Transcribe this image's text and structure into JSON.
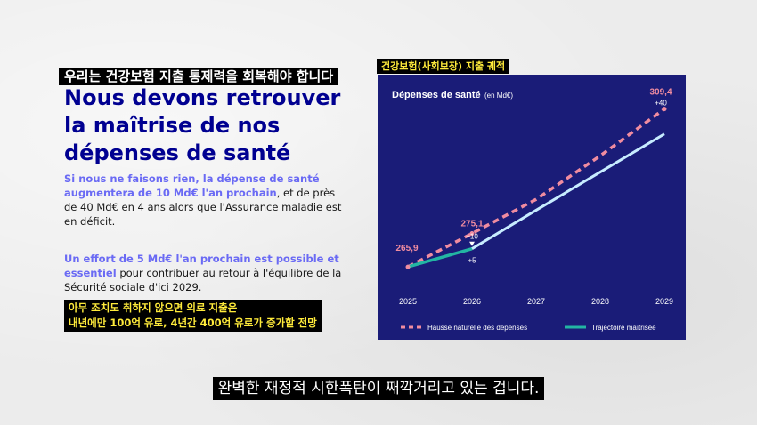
{
  "korean_title": "우리는 건강보험 지출 통제력을 회복해야 합니다",
  "slide": {
    "title": "Nous devons retrouver la maîtrise de nos dépenses de santé",
    "para1": {
      "highlight": "Si nous ne faisons rien, la dépense de santé augmentera de 10 Md€ l'an prochain",
      "rest": ", et de près de 40 Md€ en 4 ans alors que l'Assurance maladie est en déficit."
    },
    "para2": {
      "highlight": "Un effort de 5 Md€ l'an prochain est possible et essentiel",
      "rest": " pour contribuer au retour à l'équilibre de la Sécurité sociale d'ici 2029."
    }
  },
  "korean_sub": {
    "line1": "아무 조치도 취하지 않으면 의료 지출은",
    "line2": "내년에만 100억 유로, 4년간 400억 유로가 증가할 전망"
  },
  "korean_chart_label": "건강보험(사회보장) 지출 궤적",
  "chart_data": {
    "type": "line",
    "title": "Dépenses de santé",
    "unit": "(en Md€)",
    "x": [
      "2025",
      "2026",
      "2027",
      "2028",
      "2029"
    ],
    "series": [
      {
        "name": "Hausse naturelle des dépenses",
        "color": "#f08ca0",
        "style": "dashed",
        "values": [
          265.9,
          275.1,
          284.5,
          296.5,
          309.4
        ]
      },
      {
        "name": "Trajectoire maîtrisée",
        "color": "#23b5a3",
        "color_forecast": "#c7ecff",
        "values": [
          265.9,
          270.9,
          281.5,
          292.0,
          302.5
        ]
      }
    ],
    "data_labels": {
      "v2025": "265,9",
      "v2026": "275,1",
      "d2026": "+10",
      "v2029": "309,4",
      "d2029": "+40",
      "m2026": "+5"
    },
    "ylim": [
      262,
      312
    ]
  },
  "subtitle": "완벽한 재정적 시한폭탄이 째깍거리고 있는 겁니다."
}
